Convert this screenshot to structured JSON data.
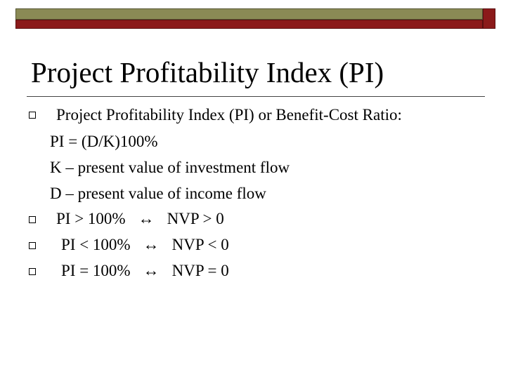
{
  "slide": {
    "title": "Project Profitability Index (PI)",
    "lines": {
      "l1": "Project Profitability Index (PI) or Benefit-Cost Ratio:",
      "l2": "PI = (D/K)100%",
      "l3": "K – present value of investment flow",
      "l4": "D – present value of income flow"
    },
    "relations": [
      {
        "left": "PI > 100%",
        "arrow": "↔",
        "right": "NVP > 0"
      },
      {
        "left": "PI < 100%",
        "arrow": "↔",
        "right": "NVP < 0"
      },
      {
        "left": "PI = 100%",
        "arrow": "↔",
        "right": "NVP = 0"
      }
    ]
  },
  "colors": {
    "olive_bar": "#8a8a55",
    "red_bar": "#8b1a1a"
  }
}
